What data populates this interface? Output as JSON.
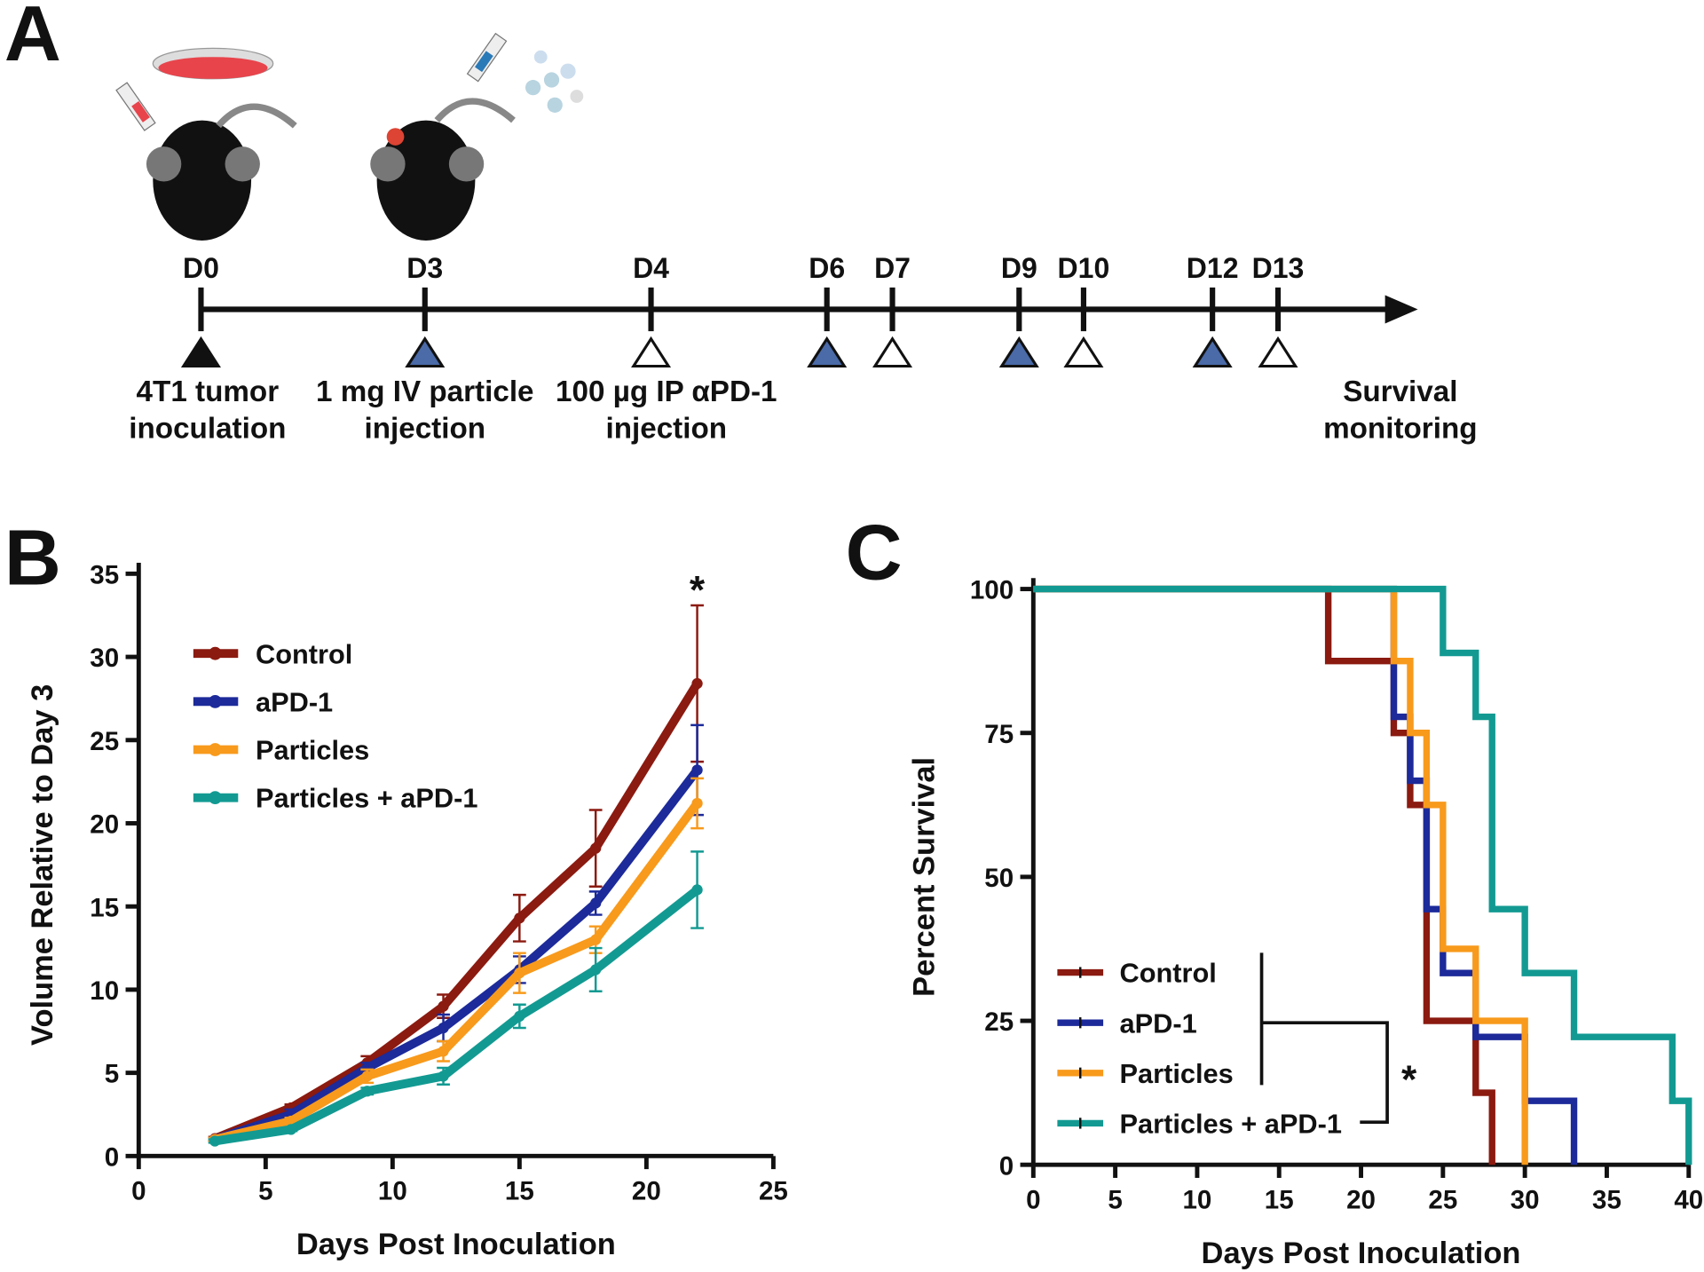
{
  "panel_labels": [
    "A",
    "B",
    "C"
  ],
  "timeline": {
    "days": [
      "D0",
      "D3",
      "D4",
      "D6",
      "D7",
      "D9",
      "D10",
      "D12",
      "D13"
    ],
    "events": [
      [
        "4T1 tumor",
        "inoculation"
      ],
      [
        "1 mg IV particle",
        "injection"
      ],
      [
        "100 µg IP αPD-1",
        "injection"
      ],
      [
        "Survival",
        "monitoring"
      ]
    ]
  },
  "chart_data": [
    {
      "type": "line",
      "x_label": "Days Post Inoculation",
      "y_label": "Volume Relative to Day 3",
      "annotation": "*",
      "x": [
        3,
        6,
        9,
        12,
        15,
        18,
        22
      ],
      "xlim": [
        0,
        25
      ],
      "xticks": [
        0,
        5,
        10,
        15,
        20,
        25
      ],
      "ylim": [
        0,
        35
      ],
      "yticks": [
        0,
        5,
        10,
        15,
        20,
        25,
        30,
        35
      ],
      "legend": "upper left",
      "series": [
        {
          "name": "Control",
          "color": "#8b1a10",
          "values": [
            1.05,
            2.9,
            5.6,
            9.0,
            14.3,
            18.5,
            28.4
          ],
          "errors": [
            0.1,
            0.2,
            0.4,
            0.7,
            1.4,
            2.3,
            4.7
          ]
        },
        {
          "name": "aPD-1",
          "color": "#1c2a9a",
          "values": [
            1.0,
            2.5,
            5.3,
            7.7,
            11.2,
            15.2,
            23.2
          ],
          "errors": [
            0.1,
            0.3,
            0.3,
            0.8,
            0.8,
            0.7,
            2.7
          ]
        },
        {
          "name": "Particles",
          "color": "#f89a1c",
          "values": [
            1.0,
            2.1,
            4.8,
            6.3,
            11.0,
            13.0,
            21.2
          ],
          "errors": [
            0.1,
            0.2,
            0.4,
            0.6,
            1.2,
            0.8,
            1.5
          ]
        },
        {
          "name": "Particles + aPD-1",
          "color": "#129a92",
          "values": [
            0.9,
            1.6,
            3.9,
            4.8,
            8.4,
            11.2,
            16.0
          ],
          "errors": [
            0.1,
            0.1,
            0.2,
            0.5,
            0.7,
            1.3,
            2.3
          ]
        }
      ]
    },
    {
      "type": "step",
      "x_label": "Days Post Inoculation",
      "y_label": "Percent Survival",
      "annotation": "*",
      "xlim": [
        0,
        40
      ],
      "xticks": [
        0,
        5,
        10,
        15,
        20,
        25,
        30,
        35,
        40
      ],
      "ylim": [
        0,
        100
      ],
      "yticks": [
        0,
        25,
        50,
        75,
        100
      ],
      "legend": "lower left",
      "series": [
        {
          "name": "Control",
          "color": "#8b1a10",
          "x": [
            0,
            18,
            22,
            23,
            24,
            27,
            28
          ],
          "values": [
            100,
            87.5,
            75,
            62.5,
            25,
            12.5,
            0
          ]
        },
        {
          "name": "aPD-1",
          "color": "#1c2a9a",
          "x": [
            0,
            22,
            23,
            24,
            25,
            27,
            30,
            33
          ],
          "values": [
            100,
            77.8,
            66.7,
            44.4,
            33.3,
            22.2,
            11.1,
            0
          ]
        },
        {
          "name": "Particles",
          "color": "#f89a1c",
          "x": [
            0,
            22,
            23,
            24,
            25,
            27,
            30
          ],
          "values": [
            100,
            87.5,
            75,
            62.5,
            37.5,
            25,
            0
          ]
        },
        {
          "name": "Particles + aPD-1",
          "color": "#129a92",
          "x": [
            0,
            25,
            27,
            28,
            30,
            33,
            39,
            40
          ],
          "values": [
            100,
            88.9,
            77.8,
            44.4,
            33.3,
            22.2,
            11.1,
            0
          ]
        }
      ]
    }
  ]
}
